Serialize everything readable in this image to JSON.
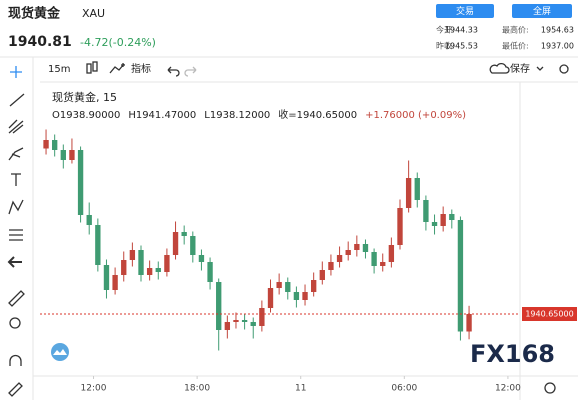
{
  "header": {
    "name": "现货黄金",
    "symbol": "XAU",
    "price": "1940.81",
    "change": "-4.72(-0.24%)",
    "buttons": [
      "交易",
      "全屏"
    ],
    "stats": [
      [
        "今开:",
        "1944.33",
        "最高价:",
        "1954.63"
      ],
      [
        "昨收:",
        "1945.53",
        "最低价:",
        "1937.00"
      ]
    ]
  },
  "toolbar": {
    "interval": "15m",
    "indicators": "指标",
    "save": "保存"
  },
  "watermark": "FX168",
  "chart_data": {
    "type": "candlestick",
    "title": "现货黄金, 15",
    "ohlc_legend": [
      "O1938.90000",
      "H1941.47000",
      "L1938.12000",
      "收=1940.65000",
      "+1.76000 (+0.09%)"
    ],
    "x": [
      -2.75,
      -2.25,
      -1.75,
      -1.25,
      -0.75,
      -0.25,
      0.25,
      0.75,
      1.25,
      1.75,
      2.25,
      2.75,
      3.25,
      3.75,
      4.25,
      4.75,
      5.25,
      5.75,
      6.25,
      6.75,
      7.25,
      7.75,
      8.25,
      8.75,
      9.25,
      9.75,
      10.25,
      10.75,
      11.25,
      11.75,
      12.25,
      12.75,
      13.25,
      13.75,
      14.25,
      14.75,
      15.25,
      15.75,
      16.25,
      16.75,
      17.25,
      17.75,
      18.25,
      18.75,
      19.25,
      19.75,
      20.25,
      20.75,
      21.25,
      21.75
    ],
    "open": [
      1957.2,
      1958.05,
      1957.05,
      1956.05,
      1957.05,
      1950.55,
      1949.55,
      1945.55,
      1943.05,
      1944.55,
      1946.05,
      1947.05,
      1944.55,
      1945.25,
      1944.85,
      1946.55,
      1948.85,
      1948.45,
      1946.55,
      1945.85,
      1943.85,
      1939.05,
      1939.85,
      1940.05,
      1939.85,
      1939.45,
      1941.25,
      1943.25,
      1943.85,
      1942.85,
      1942.05,
      1942.85,
      1944.05,
      1945.05,
      1945.85,
      1946.55,
      1947.05,
      1947.65,
      1946.85,
      1945.45,
      1945.85,
      1947.55,
      1951.25,
      1954.25,
      1952.05,
      1949.85,
      1949.45,
      1950.65,
      1950.05,
      1938.9
    ],
    "high": [
      1959.1,
      1958.6,
      1957.6,
      1958.2,
      1957.4,
      1951.8,
      1950.2,
      1946.1,
      1945.3,
      1946.9,
      1947.8,
      1947.5,
      1946.0,
      1945.9,
      1947.2,
      1949.9,
      1949.5,
      1948.9,
      1947.1,
      1946.3,
      1944.2,
      1940.5,
      1940.8,
      1940.6,
      1940.3,
      1942.0,
      1944.1,
      1944.7,
      1944.3,
      1943.4,
      1943.6,
      1944.8,
      1945.9,
      1946.6,
      1947.4,
      1947.9,
      1948.5,
      1948.1,
      1947.2,
      1946.7,
      1948.3,
      1952.1,
      1956.0,
      1954.8,
      1952.5,
      1950.6,
      1951.4,
      1951.1,
      1950.4,
      1941.47
    ],
    "low": [
      1956.6,
      1956.4,
      1955.2,
      1955.7,
      1949.8,
      1948.6,
      1944.9,
      1942.2,
      1942.6,
      1943.9,
      1945.4,
      1943.9,
      1944.0,
      1944.1,
      1944.4,
      1946.1,
      1947.6,
      1945.8,
      1945.0,
      1943.1,
      1937.0,
      1938.2,
      1939.2,
      1939.1,
      1938.2,
      1938.9,
      1940.8,
      1942.6,
      1942.1,
      1941.3,
      1941.5,
      1942.4,
      1943.6,
      1944.5,
      1945.3,
      1946.0,
      1946.4,
      1946.2,
      1944.7,
      1944.9,
      1945.3,
      1947.1,
      1950.8,
      1951.3,
      1949.0,
      1948.6,
      1948.9,
      1949.2,
      1938.0,
      1938.12
    ],
    "close": [
      1958.05,
      1957.05,
      1956.05,
      1957.05,
      1950.55,
      1949.55,
      1945.55,
      1943.05,
      1944.55,
      1946.05,
      1947.05,
      1944.55,
      1945.25,
      1944.85,
      1946.55,
      1948.85,
      1948.45,
      1946.55,
      1945.85,
      1943.85,
      1939.05,
      1939.85,
      1940.05,
      1939.85,
      1939.45,
      1941.25,
      1943.25,
      1943.85,
      1942.85,
      1942.05,
      1942.85,
      1944.05,
      1945.05,
      1945.85,
      1946.55,
      1947.05,
      1947.65,
      1946.85,
      1945.45,
      1945.85,
      1947.55,
      1951.25,
      1954.25,
      1952.05,
      1949.85,
      1949.45,
      1950.65,
      1950.05,
      1938.9,
      1940.65
    ],
    "up_color": "#c1453b",
    "down_color": "#3f9b72",
    "xlim": [
      -3.1,
      24.7
    ],
    "xticks": [
      {
        "value": 0,
        "label": "12:00"
      },
      {
        "value": 6,
        "label": "18:00"
      },
      {
        "value": 12,
        "label": "11"
      },
      {
        "value": 18,
        "label": "06:00"
      },
      {
        "value": 24,
        "label": "12:00"
      }
    ],
    "ylim": [
      1934.85,
      1962.05
    ],
    "price_line": {
      "value": 1940.65,
      "label": "1940.65000"
    },
    "price_line_color": "#d8362b"
  }
}
